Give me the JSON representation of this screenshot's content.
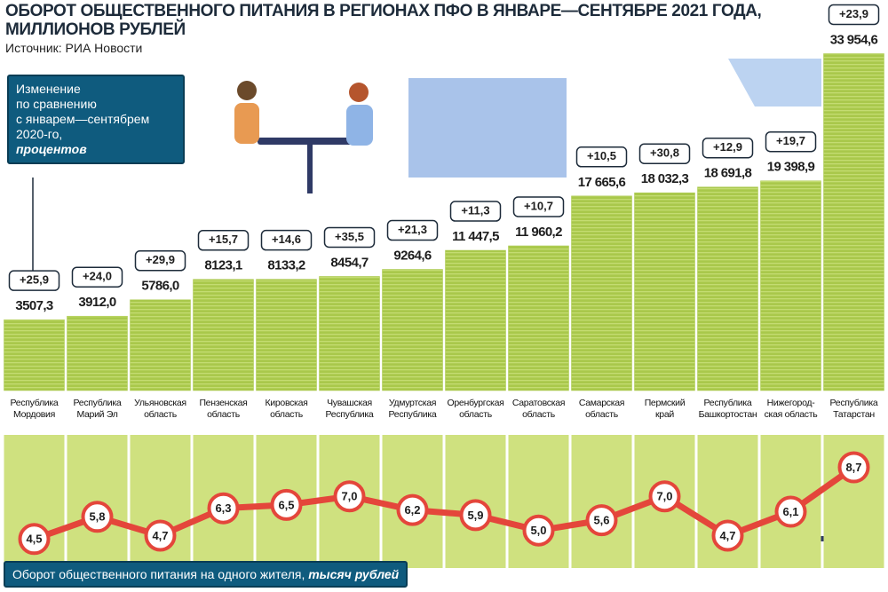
{
  "chart_data": [
    {
      "type": "bar",
      "title": "ОБОРОТ ОБЩЕСТВЕННОГО ПИТАНИЯ В РЕГИОНАХ ПФО В ЯНВАРЕ—СЕНТЯБРЕ 2021 ГОДА, МИЛЛИОНОВ РУБЛЕЙ",
      "subtitle": "Источник: РИА Новости",
      "categories": [
        "Республика\nМордовия",
        "Республика\nМарий Эл",
        "Ульяновская\nобласть",
        "Пензенская\nобласть",
        "Кировская\nобласть",
        "Чувашская\nРеспублика",
        "Удмуртская\nРеспублика",
        "Оренбургская\nобласть",
        "Саратовская\nобласть",
        "Самарская\nобласть",
        "Пермский\nкрай",
        "Республика\nБашкортостан",
        "Нижегород-\nская область",
        "Республика\nТатарстан"
      ],
      "values": [
        3507.3,
        3912.0,
        5786.0,
        8123.1,
        8133.2,
        8454.7,
        9264.6,
        11447.5,
        11960.2,
        17665.6,
        18032.3,
        18691.8,
        19398.9,
        33954.6
      ],
      "value_labels": [
        "3507,3",
        "3912,0",
        "5786,0",
        "8123,1",
        "8133,2",
        "8454,7",
        "9264,6",
        "11 447,5",
        "11 960,2",
        "17 665,6",
        "18 032,3",
        "18 691,8",
        "19 398,9",
        "33 954,6"
      ],
      "color": "#a9c84b",
      "ylim": [
        -4600,
        34000
      ],
      "grid": false,
      "annotations": {
        "title": "Изменение\nпо сравнению\nс январем—сентябрем\n2020-го,",
        "unit": "процентов",
        "values": [
          25.9,
          24.0,
          29.9,
          15.7,
          14.6,
          35.5,
          21.3,
          11.3,
          10.7,
          10.5,
          30.8,
          12.9,
          19.7,
          23.9
        ],
        "value_labels": [
          "+25,9",
          "+24,0",
          "+29,9",
          "+15,7",
          "+14,6",
          "+35,5",
          "+21,3",
          "+11,3",
          "+10,7",
          "+10,5",
          "+30,8",
          "+12,9",
          "+19,7",
          "+23,9"
        ]
      }
    },
    {
      "type": "line",
      "title": "Оборот общественного питания на одного жителя, ",
      "unit": "тысяч рублей",
      "values": [
        4.5,
        5.8,
        4.7,
        6.3,
        6.5,
        7.0,
        6.2,
        5.9,
        5.0,
        5.6,
        7.0,
        4.7,
        6.1,
        8.7
      ],
      "value_labels": [
        "4,5",
        "5,8",
        "4,7",
        "6,3",
        "6,5",
        "7,0",
        "6,2",
        "5,9",
        "5,0",
        "5,6",
        "7,0",
        "4,7",
        "6,1",
        "8,7"
      ],
      "color": "#e4463b",
      "ylim": [
        2.8,
        10.6
      ]
    }
  ]
}
